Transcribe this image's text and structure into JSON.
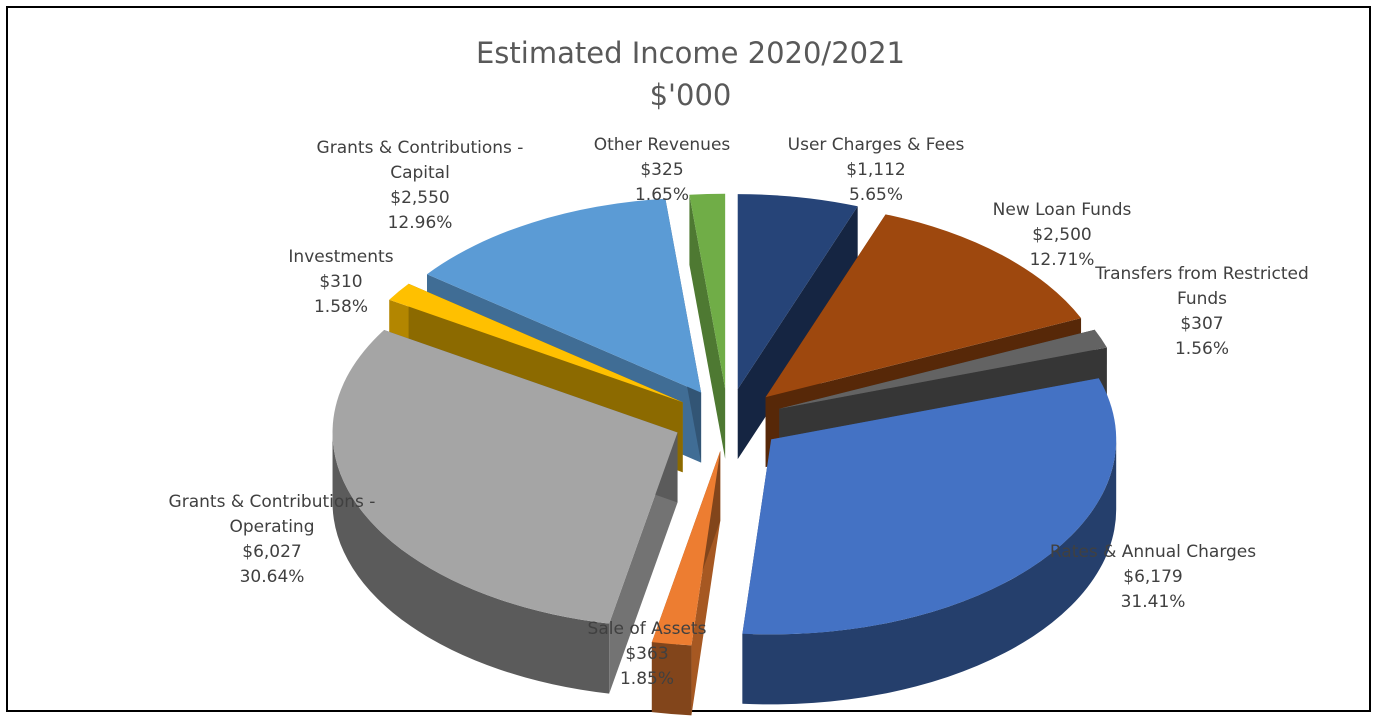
{
  "chart_data": {
    "type": "pie",
    "title": "Estimated Income 2020/2021",
    "subtitle": "$'000",
    "slices": [
      {
        "label_lines": [
          "User Charges & Fees"
        ],
        "value_text": "$1,112",
        "percent_text": "5.65%",
        "value": 1112,
        "color": "#264478"
      },
      {
        "label_lines": [
          "New Loan Funds"
        ],
        "value_text": "$2,500",
        "percent_text": "12.71%",
        "value": 2500,
        "color": "#9E480E"
      },
      {
        "label_lines": [
          "Transfers from Restricted",
          "Funds"
        ],
        "value_text": "$307",
        "percent_text": "1.56%",
        "value": 307,
        "color": "#636363"
      },
      {
        "label_lines": [
          "Rates & Annual Charges"
        ],
        "value_text": "$6,179",
        "percent_text": "31.41%",
        "value": 6179,
        "color": "#4472C4"
      },
      {
        "label_lines": [
          "Sale of Assets"
        ],
        "value_text": "$363",
        "percent_text": "1.85%",
        "value": 363,
        "color": "#ED7D31"
      },
      {
        "label_lines": [
          "Grants & Contributions -",
          "Operating"
        ],
        "value_text": "$6,027",
        "percent_text": "30.64%",
        "value": 6027,
        "color": "#A5A5A5"
      },
      {
        "label_lines": [
          "Investments"
        ],
        "value_text": "$310",
        "percent_text": "1.58%",
        "value": 310,
        "color": "#FFC000"
      },
      {
        "label_lines": [
          "Grants & Contributions -",
          "Capital"
        ],
        "value_text": "$2,550",
        "percent_text": "12.96%",
        "value": 2550,
        "color": "#5B9BD5"
      },
      {
        "label_lines": [
          "Other Revenues"
        ],
        "value_text": "$325",
        "percent_text": "1.65%",
        "value": 325,
        "color": "#70AD47"
      }
    ]
  }
}
